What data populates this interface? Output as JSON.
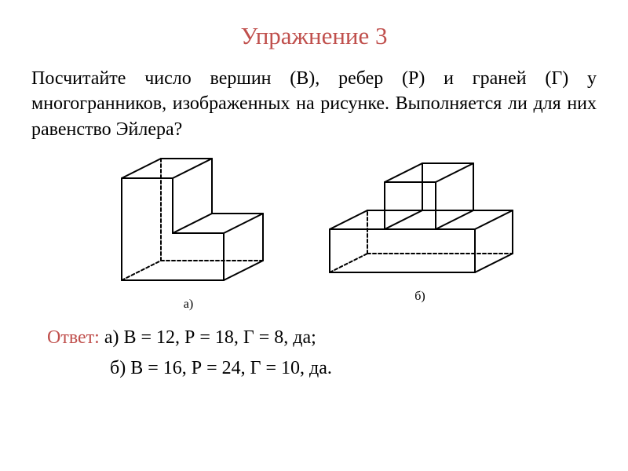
{
  "title": {
    "text": "Упражнение 3",
    "color": "#c0504d"
  },
  "question": {
    "text": "Посчитайте число вершин (В), ребер (Р) и граней (Г) у многогранников, изображенных на рисунке. Выполняется ли для них равенство Эйлера?",
    "color": "#000000"
  },
  "figures": {
    "a": {
      "label": "а)",
      "stroke": "#000000",
      "stroke_width": 2,
      "dash": "4,3"
    },
    "b": {
      "label": "б)",
      "stroke": "#000000",
      "stroke_width": 2,
      "dash": "4,3"
    }
  },
  "answer": {
    "label": "Ответ:",
    "label_color": "#c0504d",
    "a_text": " а) В = 12, Р = 18, Г = 8, да;",
    "b_text": "б) В = 16, Р = 24, Г = 10, да.",
    "text_color": "#000000"
  },
  "fonts": {
    "title_size": 31,
    "body_size": 24,
    "caption_size": 16
  }
}
